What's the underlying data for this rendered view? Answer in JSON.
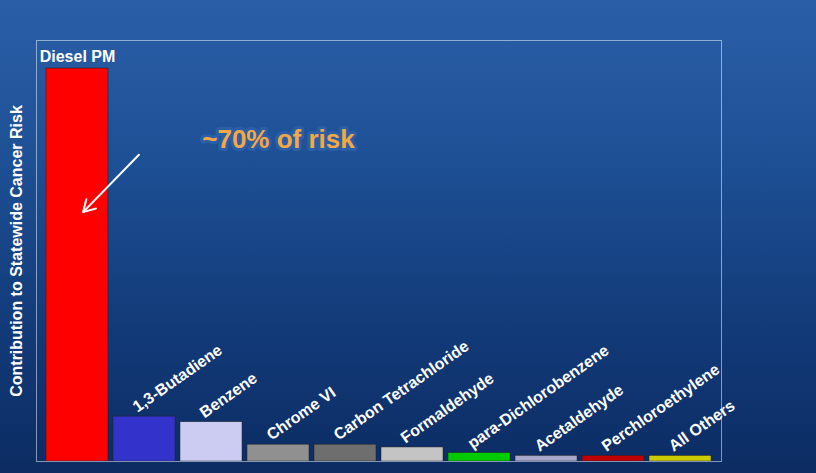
{
  "chart_data": {
    "type": "bar",
    "y_label": "Contribution to Statewide Cancer Risk",
    "annotation": "~70% of risk",
    "categories": [
      "Diesel PM",
      "1,3-Butadiene",
      "Benzene",
      "Chrome VI",
      "Carbon Tetrachloride",
      "Formaldehyde",
      "para-Dichlorobenzene",
      "Acetaldehyde",
      "Perchloroethylene",
      "All Others"
    ],
    "values": [
      70,
      8,
      7,
      3,
      3,
      2.5,
      1.5,
      1,
      1,
      1
    ],
    "colors": [
      "#ff0000",
      "#3333cc",
      "#ccccf2",
      "#909090",
      "#6e6e6e",
      "#c4c4c4",
      "#00cc00",
      "#a8a8cc",
      "#c00000",
      "#cccc00"
    ],
    "ylim": [
      0,
      75
    ],
    "yticks": [],
    "grid": false,
    "tick_labels": "x"
  }
}
